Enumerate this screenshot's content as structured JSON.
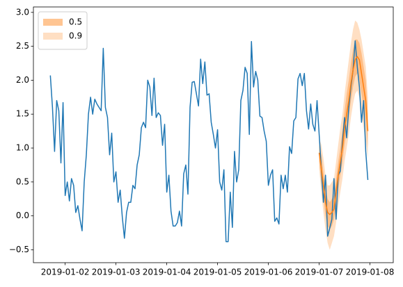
{
  "chart_data": {
    "type": "line",
    "xlim": [
      9,
      179
    ],
    "xticks": [
      {
        "value": 24,
        "label": "2019-01-02"
      },
      {
        "value": 48,
        "label": "2019-01-03"
      },
      {
        "value": 72,
        "label": "2019-01-04"
      },
      {
        "value": 96,
        "label": "2019-01-05"
      },
      {
        "value": 120,
        "label": "2019-01-06"
      },
      {
        "value": 144,
        "label": "2019-01-07"
      },
      {
        "value": 168,
        "label": "2019-01-08"
      }
    ],
    "ylim": [
      -0.69,
      3.08
    ],
    "yticks": [
      {
        "value": -0.5,
        "label": "−0.5"
      },
      {
        "value": 0,
        "label": "0.0"
      },
      0.5,
      {
        "value": 1,
        "label": "1.0"
      },
      1.5,
      {
        "value": 2,
        "label": "2.0"
      },
      2.5,
      {
        "value": 3,
        "label": "3.0"
      }
    ],
    "legend": "upper left",
    "bands": [
      {
        "name": "0.9",
        "color": "#ff7f0e",
        "opacity": 0.25,
        "x": [
          144,
          145,
          146,
          147,
          148,
          149,
          150,
          151,
          152,
          153,
          154,
          155,
          156,
          157,
          158,
          159,
          160,
          161,
          162,
          163,
          164,
          165,
          166,
          167
        ],
        "lower": [
          0.7,
          0.35,
          0.05,
          -0.2,
          -0.4,
          -0.5,
          -0.4,
          -0.3,
          -0.1,
          0.15,
          0.35,
          0.55,
          0.8,
          1.0,
          1.2,
          1.45,
          1.65,
          1.8,
          1.85,
          1.75,
          1.5,
          1.3,
          1.1,
          0.85
        ],
        "upper": [
          1.15,
          1.05,
          0.85,
          0.6,
          0.45,
          0.45,
          0.5,
          0.55,
          0.8,
          1.05,
          1.3,
          1.5,
          1.8,
          2.05,
          2.3,
          2.55,
          2.75,
          2.88,
          2.85,
          2.75,
          2.6,
          2.4,
          2.2,
          1.75
        ]
      },
      {
        "name": "0.5",
        "color": "#ff7f0e",
        "opacity": 0.35,
        "x": [
          144,
          145,
          146,
          147,
          148,
          149,
          150,
          151,
          152,
          153,
          154,
          155,
          156,
          157,
          158,
          159,
          160,
          161,
          162,
          163,
          164,
          165,
          166,
          167
        ],
        "lower": [
          0.8,
          0.5,
          0.25,
          0.0,
          -0.15,
          -0.2,
          -0.15,
          -0.05,
          0.15,
          0.4,
          0.6,
          0.8,
          1.05,
          1.25,
          1.45,
          1.7,
          1.9,
          2.05,
          2.1,
          2.0,
          1.8,
          1.6,
          1.4,
          1.0
        ],
        "upper": [
          1.05,
          0.9,
          0.65,
          0.4,
          0.25,
          0.2,
          0.25,
          0.3,
          0.55,
          0.8,
          1.0,
          1.25,
          1.55,
          1.8,
          2.0,
          2.25,
          2.45,
          2.6,
          2.6,
          2.55,
          2.4,
          2.2,
          2.0,
          1.5
        ]
      }
    ],
    "series": [
      {
        "color": "#1f77b4",
        "x": [
          17,
          18,
          19,
          20,
          21,
          22,
          23,
          24,
          25,
          26,
          27,
          28,
          29,
          30,
          31,
          32,
          33,
          34,
          35,
          36,
          37,
          38,
          39,
          40,
          41,
          42,
          43,
          44,
          45,
          46,
          47,
          48,
          49,
          50,
          51,
          52,
          53,
          54,
          55,
          56,
          57,
          58,
          59,
          60,
          61,
          62,
          63,
          64,
          65,
          66,
          67,
          68,
          69,
          70,
          71,
          72,
          73,
          74,
          75,
          76,
          77,
          78,
          79,
          80,
          81,
          82,
          83,
          84,
          85,
          86,
          87,
          88,
          89,
          90,
          91,
          92,
          93,
          94,
          95,
          96,
          97,
          98,
          99,
          100,
          101,
          102,
          103,
          104,
          105,
          106,
          107,
          108,
          109,
          110,
          111,
          112,
          113,
          114,
          115,
          116,
          117,
          118,
          119,
          120,
          121,
          122,
          123,
          124,
          125,
          126,
          127,
          128,
          129,
          130,
          131,
          132,
          133,
          134,
          135,
          136,
          137,
          138,
          139,
          140,
          141,
          142,
          143,
          144,
          145,
          146,
          147,
          148,
          149,
          150,
          151,
          152,
          153,
          154,
          155,
          156,
          157,
          158,
          159,
          160,
          161,
          162,
          163,
          164,
          165,
          166,
          167
        ],
        "values": [
          2.07,
          1.6,
          0.95,
          1.7,
          1.55,
          0.78,
          1.67,
          0.3,
          0.5,
          0.22,
          0.55,
          0.45,
          0.05,
          0.15,
          -0.05,
          -0.22,
          0.5,
          0.9,
          1.5,
          1.75,
          1.5,
          1.72,
          1.65,
          1.6,
          1.55,
          2.47,
          1.6,
          1.45,
          0.9,
          1.22,
          0.5,
          0.65,
          0.2,
          0.38,
          -0.02,
          -0.33,
          0.05,
          0.2,
          0.2,
          0.45,
          0.4,
          0.75,
          0.9,
          1.3,
          1.38,
          1.3,
          2.0,
          1.9,
          1.48,
          2.03,
          1.45,
          1.52,
          1.48,
          1.04,
          1.35,
          0.35,
          0.6,
          0.07,
          -0.15,
          -0.15,
          -0.1,
          0.07,
          -0.15,
          0.62,
          0.75,
          0.32,
          1.6,
          1.97,
          1.98,
          1.8,
          1.62,
          2.31,
          1.95,
          2.27,
          1.78,
          1.8,
          1.38,
          1.2,
          1.0,
          1.27,
          0.5,
          0.38,
          0.68,
          -0.38,
          -0.38,
          0.35,
          -0.17,
          0.95,
          0.5,
          0.68,
          1.7,
          1.85,
          2.19,
          2.1,
          1.2,
          2.57,
          1.9,
          2.13,
          2.0,
          1.47,
          1.45,
          1.25,
          1.1,
          0.45,
          0.6,
          0.68,
          -0.08,
          -0.03,
          -0.12,
          0.6,
          0.4,
          0.6,
          0.35,
          1.02,
          0.92,
          1.4,
          1.45,
          2.02,
          2.1,
          1.92,
          2.1,
          1.55,
          1.28,
          1.65,
          1.35,
          1.25,
          1.7,
          1.2,
          0.7,
          0.2,
          0.6,
          -0.3,
          -0.18,
          -0.05,
          0.55,
          -0.05,
          0.6,
          0.66,
          1.1,
          1.45,
          1.15,
          1.6,
          1.9,
          2.15,
          2.58,
          2.2,
          1.9,
          1.38,
          1.7,
          0.95,
          0.53
        ]
      },
      {
        "color": "#ff7f0e",
        "x": [
          144,
          145,
          146,
          147,
          148,
          149,
          150,
          151,
          152,
          153,
          154,
          155,
          156,
          157,
          158,
          159,
          160,
          161,
          162,
          163,
          164,
          165,
          166,
          167
        ],
        "values": [
          0.93,
          0.7,
          0.45,
          0.2,
          0.05,
          0.02,
          0.05,
          0.1,
          0.35,
          0.6,
          0.8,
          1.0,
          1.3,
          1.5,
          1.7,
          1.95,
          2.15,
          2.3,
          2.35,
          2.3,
          2.1,
          1.9,
          1.7,
          1.25
        ]
      }
    ]
  }
}
